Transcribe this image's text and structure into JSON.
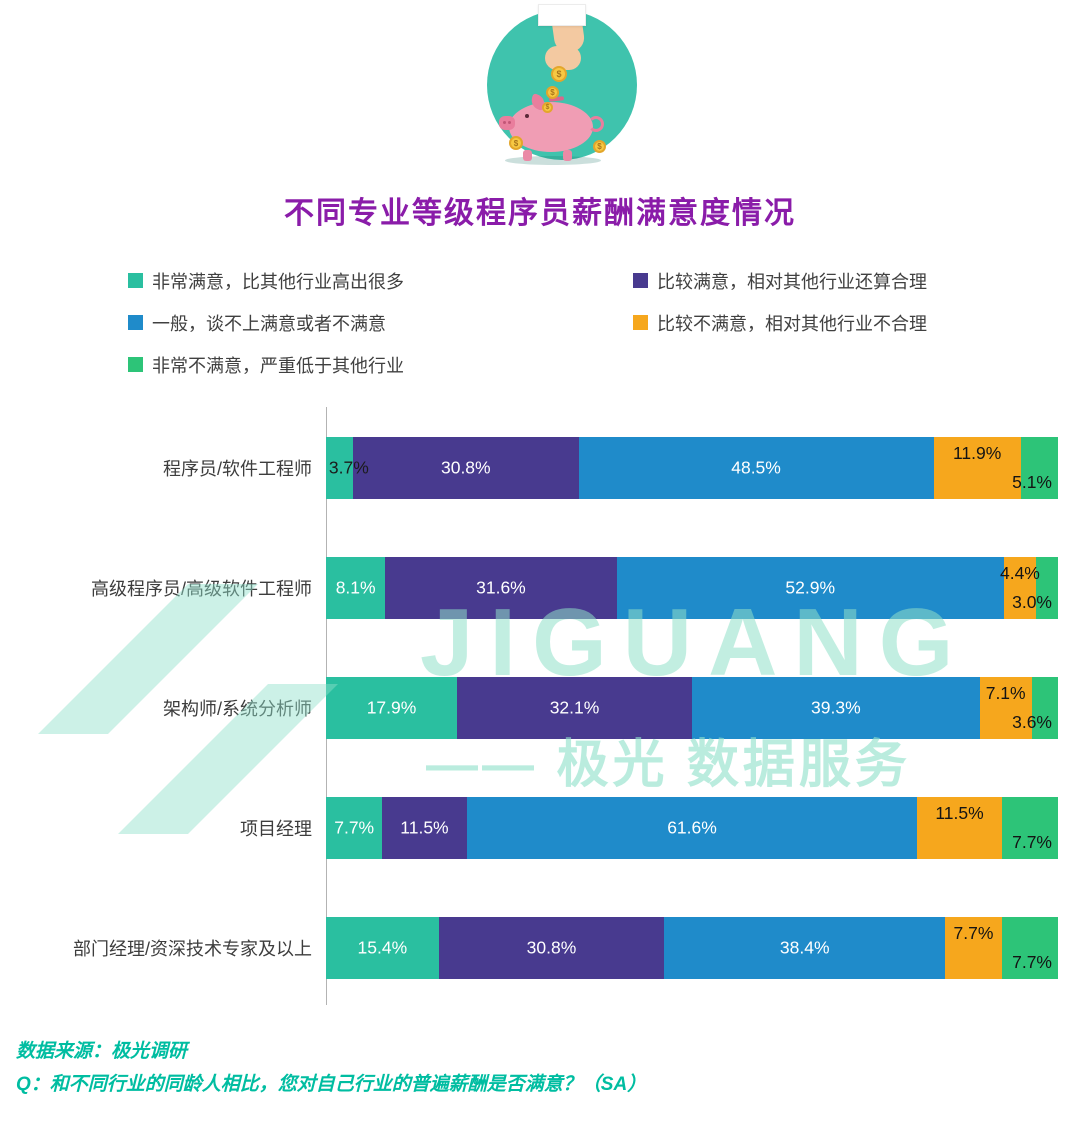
{
  "header": {
    "title": "不同专业等级程序员薪酬满意度情况"
  },
  "chart_data": {
    "type": "bar",
    "orientation": "horizontal",
    "stacked": true,
    "unit": "%",
    "xlim": [
      0,
      100
    ],
    "grid": false,
    "legend_position": "top",
    "value_labels": "percent-one-decimal",
    "categories": [
      "程序员/软件工程师",
      "高级程序员/高级软件工程师",
      "架构师/系统分析师",
      "项目经理",
      "部门经理/资深技术专家及以上"
    ],
    "series": [
      {
        "name": "非常满意，比其他行业高出很多",
        "color": "#2abfa0",
        "values": [
          3.7,
          8.1,
          17.9,
          7.7,
          15.4
        ]
      },
      {
        "name": "比较满意，相对其他行业还算合理",
        "color": "#483a8f",
        "values": [
          30.8,
          31.6,
          32.1,
          11.5,
          30.8
        ]
      },
      {
        "name": "一般，谈不上满意或者不满意",
        "color": "#1f8bca",
        "values": [
          48.5,
          52.9,
          39.3,
          61.6,
          38.4
        ]
      },
      {
        "name": "比较不满意，相对其他行业不合理",
        "color": "#f6a71d",
        "values": [
          11.9,
          4.4,
          7.1,
          11.5,
          7.7
        ]
      },
      {
        "name": "非常不满意，严重低于其他行业",
        "color": "#2dc478",
        "values": [
          5.1,
          3.0,
          3.6,
          7.7,
          7.7
        ]
      }
    ]
  },
  "watermark": {
    "brand": "JIGUANG",
    "subtext": "—— 极光 数据服务"
  },
  "footer": {
    "source": "数据来源：极光调研",
    "question": "Q：和不同行业的同龄人相比，您对自己行业的普遍薪酬是否满意？（SA）"
  }
}
